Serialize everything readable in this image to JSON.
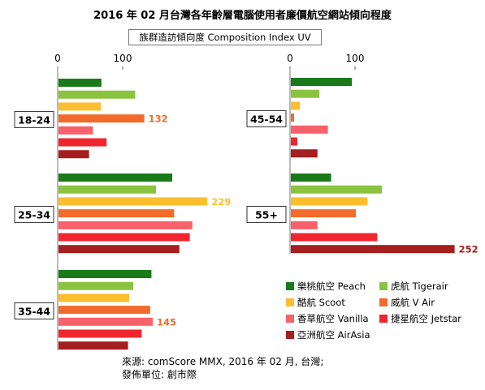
{
  "title": "2016 年 02 月台灣各年齡層電腦使用者廉價航空網站傾向程度",
  "subtitle": "族群造訪傾向度 Composition Index UV",
  "source": {
    "line1": "來源: comScore MMX, 2016 年 02 月, 台灣;",
    "line2": "發佈單位:  創市際"
  },
  "chart_data": {
    "type": "bar",
    "orientation": "horizontal",
    "title": "2016 年 02 月台灣各年齡層電腦使用者廉價航空網站傾向程度",
    "subtitle": "族群造訪傾向度 Composition Index UV",
    "x_ticks": [
      "0",
      "100"
    ],
    "xlim": [
      0,
      260
    ],
    "grid": false,
    "legend_position": "bottom-right",
    "series": [
      {
        "name": "樂桃航空 Peach",
        "color": "#1a7a1a"
      },
      {
        "name": "虎航 Tigerair",
        "color": "#8ac43f"
      },
      {
        "name": "酷航 Scoot",
        "color": "#fbbf2e"
      },
      {
        "name": "威航 V Air",
        "color": "#f26b2a"
      },
      {
        "name": "香草航空 Vanilla",
        "color": "#f9616b"
      },
      {
        "name": "捷星航空 Jetstar",
        "color": "#f0252e"
      },
      {
        "name": "亞洲航空 AirAsia",
        "color": "#a51f1f"
      }
    ],
    "groups": [
      {
        "label": "18-24",
        "values": [
          66,
          118,
          65,
          132,
          53,
          74,
          47
        ],
        "data_labels": [
          null,
          null,
          null,
          "132",
          null,
          null,
          null
        ]
      },
      {
        "label": "25-34",
        "values": [
          175,
          150,
          229,
          178,
          206,
          202,
          186
        ],
        "data_labels": [
          null,
          null,
          "229",
          null,
          null,
          null,
          null
        ]
      },
      {
        "label": "35-44",
        "values": [
          143,
          115,
          109,
          141,
          145,
          128,
          107
        ],
        "data_labels": [
          null,
          null,
          null,
          null,
          "145",
          null,
          null
        ]
      },
      {
        "label": "45-54",
        "values": [
          94,
          44,
          14,
          5,
          57,
          10,
          41
        ],
        "data_labels": [
          null,
          null,
          null,
          null,
          null,
          null,
          null
        ]
      },
      {
        "label": "55+",
        "values": [
          62,
          140,
          118,
          100,
          41,
          133,
          252
        ],
        "data_labels": [
          null,
          null,
          null,
          null,
          null,
          null,
          "252"
        ]
      }
    ],
    "data_label_colors": [
      "#1a7a1a",
      "#8ac43f",
      "#fbbf2e",
      "#f26b2a",
      "#f26b2a",
      "#f0252e",
      "#a51f1f"
    ]
  }
}
